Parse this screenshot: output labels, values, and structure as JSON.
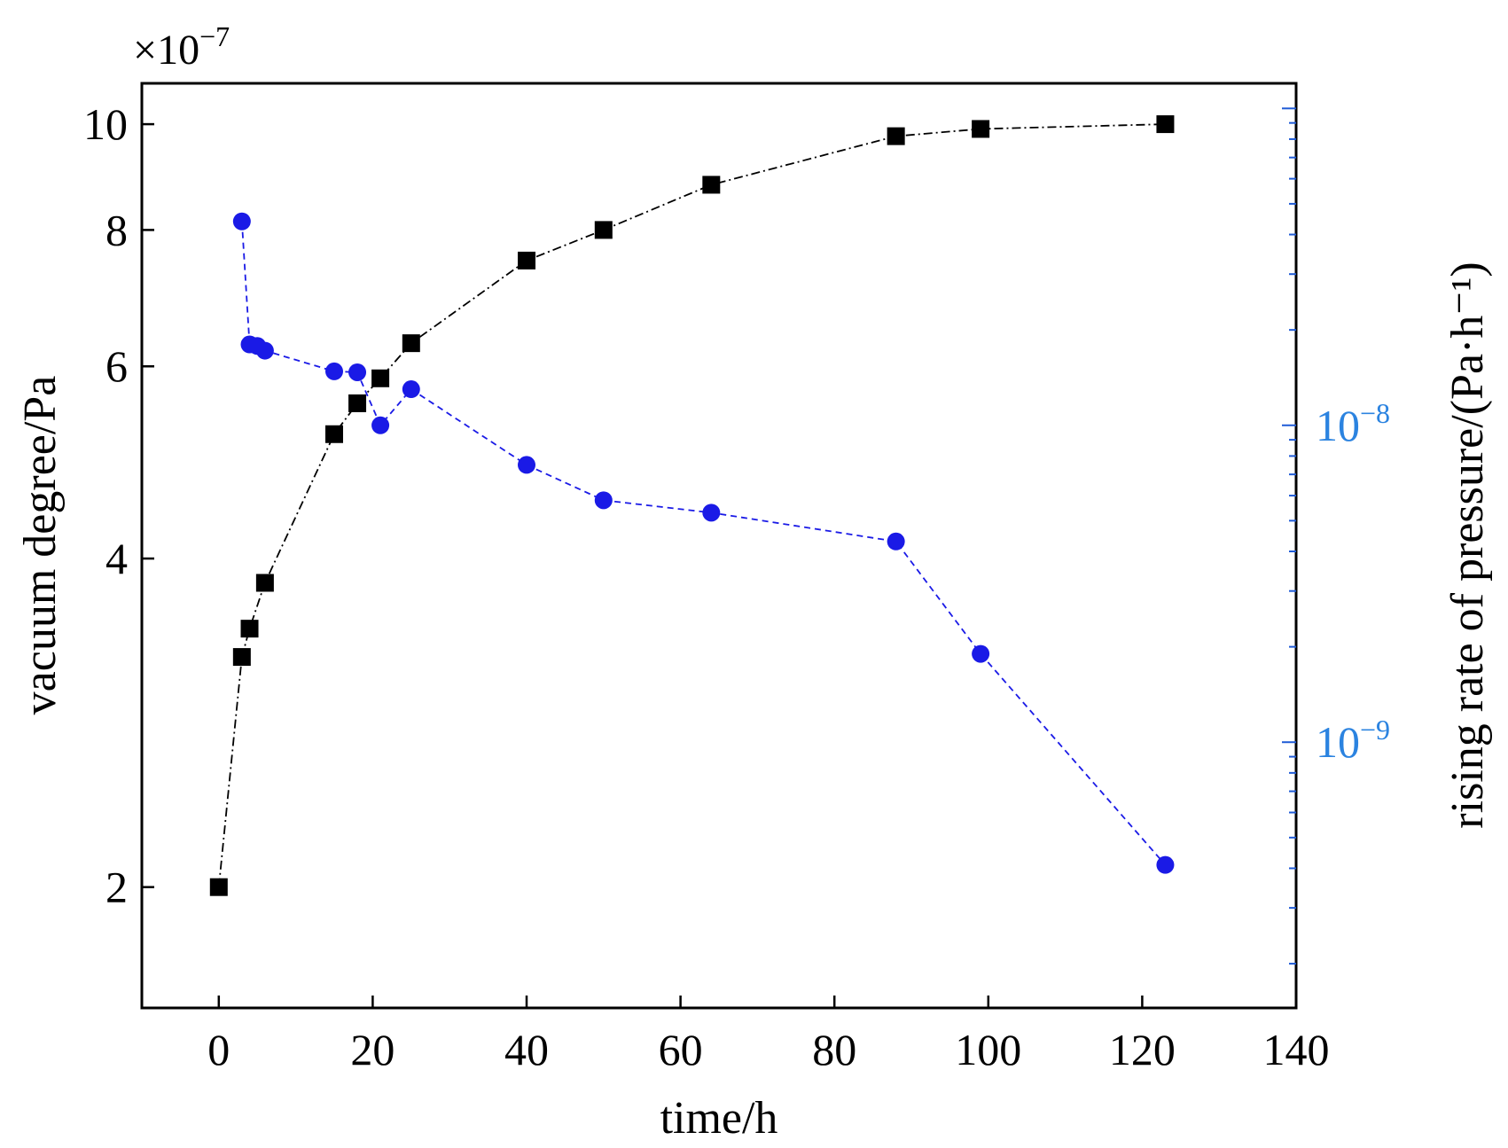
{
  "chart_data": {
    "type": "line",
    "title": "",
    "xlabel": "time/h",
    "ylabel_left": "vacuum degree/Pa",
    "ylabel_right": "rising rate of pressure/(Pa·h⁻¹)",
    "left_multiplier": {
      "base": "×10",
      "exp": "−7"
    },
    "xlim": [
      -10,
      140
    ],
    "x_ticks": [
      0,
      20,
      40,
      60,
      80,
      100,
      120,
      140
    ],
    "ylim_left": [
      1.55,
      10.9
    ],
    "left_scale": "log",
    "y_ticks_left": [
      2,
      4,
      6,
      8,
      10
    ],
    "ylim_right": [
      1.45e-10,
      1.2e-07
    ],
    "right_scale": "log",
    "y_ticks_right": [
      {
        "value": 1e-08,
        "base": "10",
        "exp": "−8"
      },
      {
        "value": 1e-09,
        "base": "10",
        "exp": "−9"
      }
    ],
    "grid": false,
    "legend": "none",
    "series": [
      {
        "axis": "left",
        "marker": "square",
        "color": "#000000",
        "line": "dash-dot",
        "x": [
          0,
          3,
          4,
          6,
          15,
          18,
          21,
          25,
          40,
          50,
          64,
          88,
          99,
          123
        ],
        "y": [
          2.0,
          3.25,
          3.45,
          3.8,
          5.2,
          5.55,
          5.85,
          6.3,
          7.5,
          8.0,
          8.8,
          9.75,
          9.9,
          10.0
        ]
      },
      {
        "axis": "right",
        "marker": "circle",
        "color": "#1a1ae6",
        "line": "dashed",
        "x": [
          3,
          4,
          5,
          6,
          15,
          18,
          21,
          25,
          40,
          50,
          64,
          88,
          99,
          123
        ],
        "y": [
          4.4e-08,
          1.8e-08,
          1.78e-08,
          1.72e-08,
          1.48e-08,
          1.47e-08,
          1e-08,
          1.3e-08,
          7.5e-09,
          5.8e-09,
          5.3e-09,
          4.3e-09,
          1.9e-09,
          4.1e-10
        ]
      }
    ]
  }
}
